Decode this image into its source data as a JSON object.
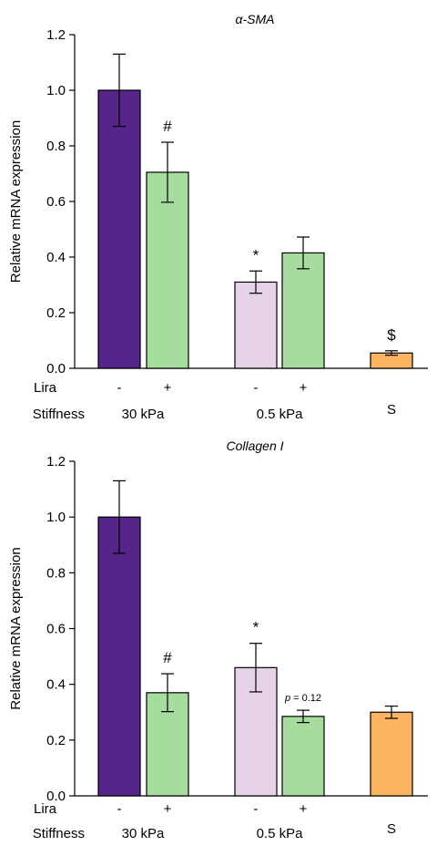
{
  "chart_data": [
    {
      "type": "bar",
      "title": "α-SMA",
      "ylabel": "Relative mRNA expression",
      "ylim": [
        0,
        1.2
      ],
      "yticks": [
        "0.0",
        "0.2",
        "0.4",
        "0.6",
        "0.8",
        "1.0",
        "1.2"
      ],
      "row_labels": {
        "lira": "Lira",
        "stiffness": "Stiffness"
      },
      "bars": [
        {
          "value": 1.0,
          "error": 0.13,
          "lira": "-",
          "color": "#55258a",
          "annotation": ""
        },
        {
          "value": 0.705,
          "error": 0.108,
          "lira": "+",
          "color": "#a6dc9e",
          "annotation": "#"
        },
        {
          "value": 0.31,
          "error": 0.04,
          "lira": "-",
          "color": "#e6d3e8",
          "annotation": "*"
        },
        {
          "value": 0.415,
          "error": 0.057,
          "lira": "+",
          "color": "#a6dc9e",
          "annotation": ""
        },
        {
          "value": 0.055,
          "error": 0.008,
          "lira": "",
          "color": "#fbb461",
          "annotation": "$"
        }
      ],
      "groups": [
        "30 kPa",
        "0.5 kPa",
        "S"
      ]
    },
    {
      "type": "bar",
      "title": "Collagen I",
      "ylabel": "Relative mRNA expression",
      "ylim": [
        0,
        1.2
      ],
      "yticks": [
        "0.0",
        "0.2",
        "0.4",
        "0.6",
        "0.8",
        "1.0",
        "1.2"
      ],
      "row_labels": {
        "lira": "Lira",
        "stiffness": "Stiffness"
      },
      "bars": [
        {
          "value": 1.0,
          "error": 0.13,
          "lira": "-",
          "color": "#55258a",
          "annotation": ""
        },
        {
          "value": 0.37,
          "error": 0.068,
          "lira": "+",
          "color": "#a6dc9e",
          "annotation": "#"
        },
        {
          "value": 0.46,
          "error": 0.087,
          "lira": "-",
          "color": "#e6d3e8",
          "annotation": "*"
        },
        {
          "value": 0.285,
          "error": 0.022,
          "lira": "+",
          "color": "#a6dc9e",
          "annotation": "p = 0.12",
          "annotation_small": true
        },
        {
          "value": 0.3,
          "error": 0.022,
          "lira": "",
          "color": "#fbb461",
          "annotation": ""
        }
      ],
      "groups": [
        "30 kPa",
        "0.5 kPa",
        "S"
      ]
    }
  ]
}
